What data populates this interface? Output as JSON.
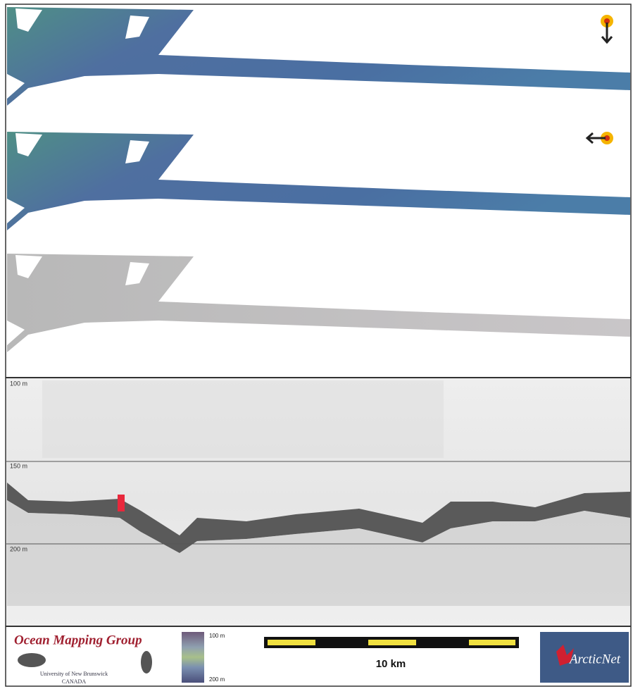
{
  "profile": {
    "depth_labels": [
      "100 m",
      "150 m",
      "200 m"
    ]
  },
  "footer": {
    "group": "Ocean Mapping Group",
    "university": "University of New Brunswick",
    "country": "CANADA",
    "colorbar": {
      "top": "100 m",
      "bottom": "200 m"
    },
    "scale": "10 km",
    "partner": "ArcticNet"
  }
}
